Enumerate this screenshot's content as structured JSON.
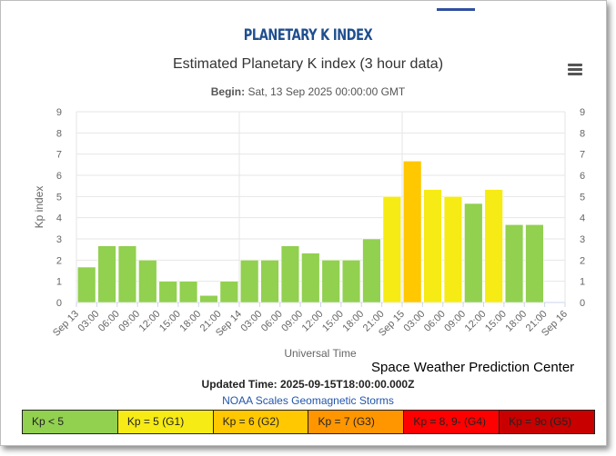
{
  "page": {
    "title": "PLANETARY K INDEX",
    "begin_label": "Begin:",
    "begin_value": "Sat, 13 Sep 2025 00:00:00 GMT",
    "org": "Space Weather Prediction Center",
    "updated": "Updated Time: 2025-09-15T18:00:00.000Z",
    "scales_link": "NOAA Scales Geomagnetic Storms"
  },
  "legend": [
    {
      "label": "Kp < 5",
      "color": "#92d050"
    },
    {
      "label": "Kp = 5 (G1)",
      "color": "#f6eb14"
    },
    {
      "label": "Kp = 6 (G2)",
      "color": "#ffc800"
    },
    {
      "label": "Kp = 7 (G3)",
      "color": "#ff9600"
    },
    {
      "label": "Kp = 8, 9- (G4)",
      "color": "#ff0000"
    },
    {
      "label": "Kp = 9o (G5)",
      "color": "#c80000"
    }
  ],
  "chart_data": {
    "type": "bar",
    "title": "Estimated Planetary K index (3 hour data)",
    "xlabel": "Universal Time",
    "ylabel": "Kp index",
    "ylim": [
      0,
      9
    ],
    "yticks": [
      "0",
      "1",
      "2",
      "3",
      "4",
      "5",
      "6",
      "7",
      "8",
      "9"
    ],
    "xticks": [
      "Sep 13",
      "03:00",
      "06:00",
      "09:00",
      "12:00",
      "15:00",
      "18:00",
      "21:00",
      "Sep 14",
      "03:00",
      "06:00",
      "09:00",
      "12:00",
      "15:00",
      "18:00",
      "21:00",
      "Sep 15",
      "03:00",
      "06:00",
      "09:00",
      "12:00",
      "15:00",
      "18:00",
      "21:00",
      "Sep 16"
    ],
    "values": [
      1.67,
      2.67,
      2.67,
      2.0,
      1.0,
      1.0,
      0.33,
      1.0,
      2.0,
      2.0,
      2.67,
      2.33,
      2.0,
      2.0,
      3.0,
      5.0,
      6.67,
      5.33,
      5.0,
      4.67,
      5.33,
      3.67,
      3.67
    ],
    "colors": {
      "below5": "#92d050",
      "g1": "#f6eb14",
      "g2": "#ffc800",
      "g3": "#ff9600"
    },
    "grid": true
  }
}
